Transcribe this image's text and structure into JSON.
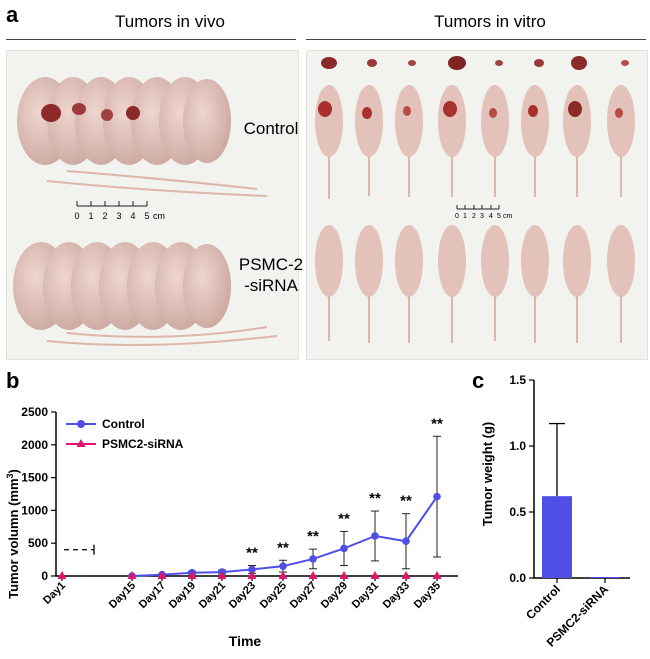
{
  "panel_a": {
    "letter": "a",
    "header_left": "Tumors in vivo",
    "header_right": "Tumors in vitro",
    "label_control": "Control",
    "label_sirna_line1": "PSMC-2",
    "label_sirna_line2": "-siRNA",
    "scale_left": {
      "ticks": [
        "0",
        "1",
        "2",
        "3",
        "4",
        "5"
      ],
      "unit": "cm"
    },
    "scale_right": {
      "ticks": [
        "0",
        "1",
        "2",
        "3",
        "4",
        "5"
      ],
      "unit": "cm"
    },
    "colors": {
      "skin": "#e6c8c0",
      "skin_dark": "#c9a59c",
      "tumor": "#8c2a2a",
      "tumor_light": "#b84a48"
    }
  },
  "panel_b": {
    "letter": "b"
  },
  "panel_c": {
    "letter": "c"
  },
  "chart_data": [
    {
      "type": "line",
      "title": "",
      "xlabel": "Time",
      "ylabel": "Tumor volumn (mm",
      "ylabel_sup": "3",
      "ylabel_close": ")",
      "categories": [
        "Day1",
        "Day15",
        "Day17",
        "Day19",
        "Day21",
        "Day23",
        "Day25",
        "Day27",
        "Day29",
        "Day31",
        "Day33",
        "Day35"
      ],
      "ylim": [
        0,
        2500
      ],
      "yticks": [
        "0",
        "500",
        "1000",
        "1500",
        "2000",
        "2500"
      ],
      "legend_position": "top-left",
      "series": [
        {
          "name": "Control",
          "color": "#4f4fe8",
          "marker": "circle",
          "values": [
            0,
            0,
            20,
            50,
            60,
            100,
            150,
            260,
            420,
            610,
            530,
            1210
          ],
          "errors": [
            0,
            0,
            10,
            20,
            30,
            60,
            90,
            150,
            260,
            380,
            420,
            920
          ]
        },
        {
          "name": "PSMC2-siRNA",
          "color": "#e0156e",
          "marker": "triangle",
          "values": [
            0,
            0,
            0,
            0,
            0,
            0,
            0,
            0,
            0,
            0,
            0,
            0
          ]
        }
      ],
      "significance": [
        {
          "category": "Day23",
          "label": "**"
        },
        {
          "category": "Day25",
          "label": "**"
        },
        {
          "category": "Day27",
          "label": "**"
        },
        {
          "category": "Day29",
          "label": "**"
        },
        {
          "category": "Day31",
          "label": "**"
        },
        {
          "category": "Day33",
          "label": "**"
        },
        {
          "category": "Day35",
          "label": "**"
        }
      ],
      "axis_break": {
        "from": "Day1",
        "to": "Day15",
        "style": "dashed"
      }
    },
    {
      "type": "bar",
      "title": "",
      "xlabel": "",
      "ylabel": "Tumor weight (g)",
      "categories": [
        "Control",
        "PSMC2-siRNA"
      ],
      "values": [
        0.62,
        0.0
      ],
      "errors": [
        0.55,
        0.0
      ],
      "bar_color": "#4f4fe8",
      "ylim": [
        0,
        1.5
      ],
      "yticks": [
        "0.0",
        "0.5",
        "1.0",
        "1.5"
      ]
    }
  ]
}
